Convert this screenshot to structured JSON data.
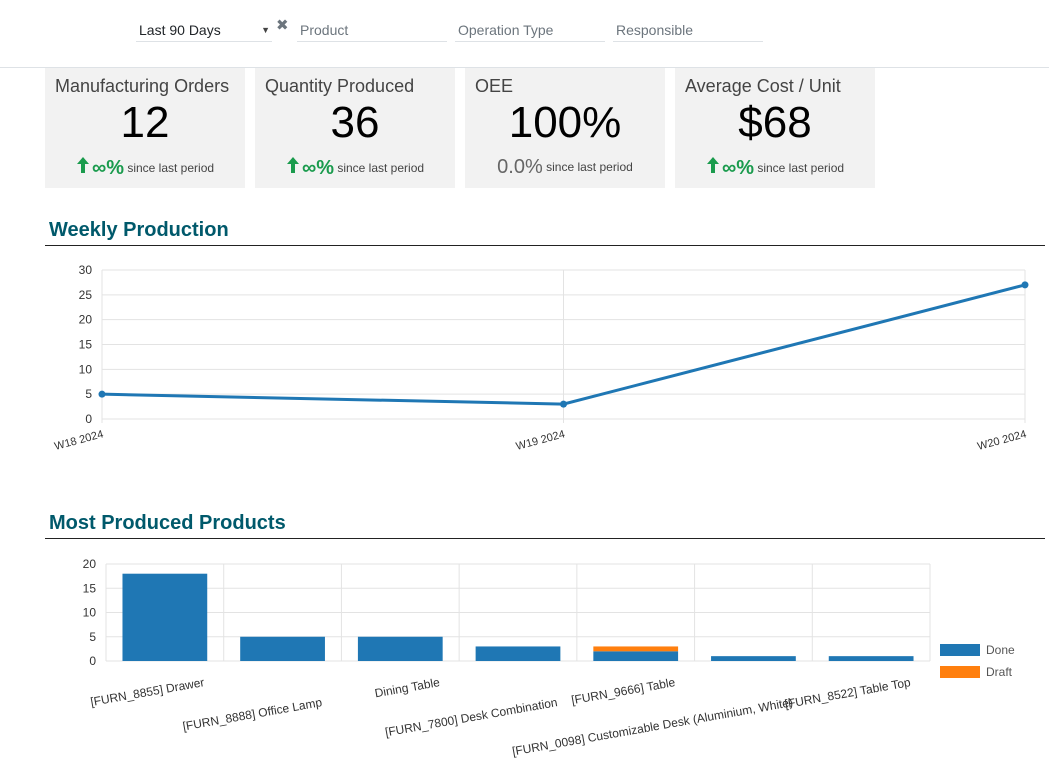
{
  "filters": {
    "period": "Last 90 Days",
    "product_placeholder": "Product",
    "operation_type_placeholder": "Operation Type",
    "responsible_placeholder": "Responsible"
  },
  "kpis": [
    {
      "title": "Manufacturing Orders",
      "value": "12",
      "trend": "∞%",
      "trend_dir": "up",
      "since": "since last period"
    },
    {
      "title": "Quantity Produced",
      "value": "36",
      "trend": "∞%",
      "trend_dir": "up",
      "since": "since last period"
    },
    {
      "title": "OEE",
      "value": "100%",
      "trend": "0.0%",
      "trend_dir": "neutral",
      "since": "since last period"
    },
    {
      "title": "Average Cost / Unit",
      "value": "$68",
      "trend": "∞%",
      "trend_dir": "up",
      "since": "since last period"
    }
  ],
  "colors": {
    "trend_up": "#1a9b4d",
    "section_title": "#00596b",
    "series_done": "#1f77b4",
    "series_draft": "#ff7f0e"
  },
  "weekly_production": {
    "title": "Weekly Production",
    "chart_data": {
      "type": "line",
      "x": [
        "W18 2024",
        "W19 2024",
        "W20 2024"
      ],
      "series": [
        {
          "values": [
            5,
            3,
            27
          ]
        }
      ],
      "yticks": [
        0,
        5,
        10,
        15,
        20,
        25,
        30
      ],
      "ylim": [
        0,
        30
      ],
      "grid": true
    }
  },
  "most_produced": {
    "title": "Most Produced Products",
    "chart_data": {
      "type": "bar",
      "stacked": true,
      "categories": [
        "[FURN_8855] Drawer",
        "[FURN_8888] Office Lamp",
        "Dining Table",
        "[FURN_7800] Desk Combination",
        "[FURN_9666] Table",
        "[FURN_0098] Customizable Desk (Aluminium, White)",
        "[FURN_8522] Table Top"
      ],
      "series": [
        {
          "name": "Done",
          "values": [
            18,
            5,
            5,
            3,
            2,
            1,
            1
          ]
        },
        {
          "name": "Draft",
          "values": [
            0,
            0,
            0,
            0,
            1,
            0,
            0
          ]
        }
      ],
      "yticks": [
        0,
        5,
        10,
        15,
        20
      ],
      "ylim": [
        0,
        20
      ],
      "legend": "right",
      "grid": true
    }
  }
}
